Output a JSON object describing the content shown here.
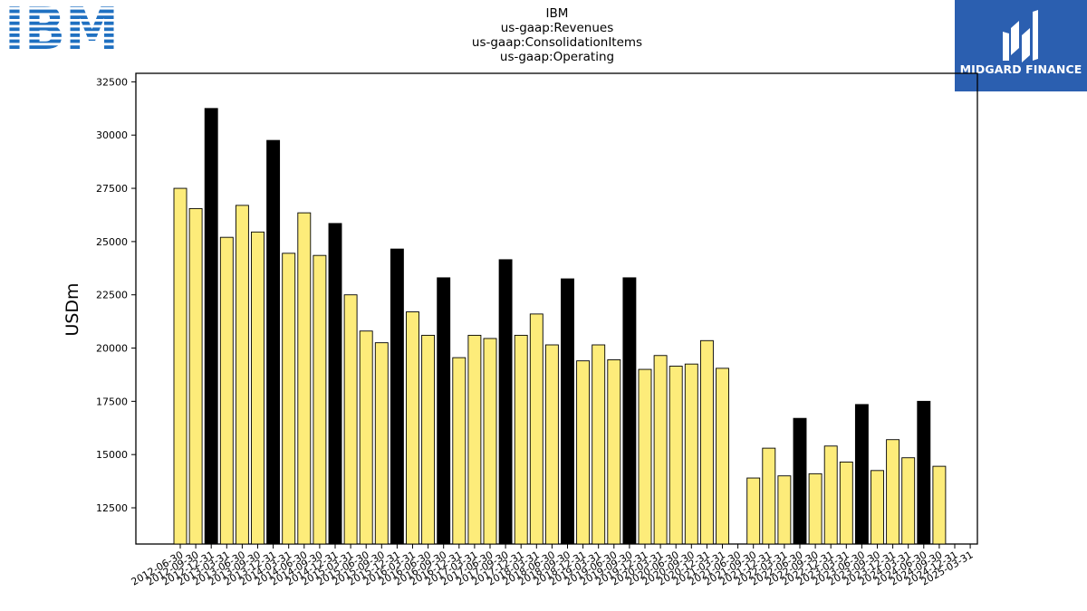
{
  "chart_data": {
    "type": "bar",
    "title_lines": [
      "IBM",
      "us-gaap:Revenues",
      "us-gaap:ConsolidationItems",
      "us-gaap:Operating"
    ],
    "xlabel": "",
    "ylabel": "USDm",
    "ylim": [
      10800,
      32900
    ],
    "yticks": [
      12500,
      15000,
      17500,
      20000,
      22500,
      25000,
      27500,
      30000,
      32500
    ],
    "grid": false,
    "legend": "none",
    "colors": {
      "quarter": "#fdec7a",
      "year_end": "#000000",
      "edge": "#000000"
    },
    "categories": [
      "2012-06-30",
      "2012-09-30",
      "2012-12-31",
      "2013-03-31",
      "2013-06-30",
      "2013-09-30",
      "2013-12-31",
      "2014-03-31",
      "2014-06-30",
      "2014-09-30",
      "2014-12-31",
      "2015-03-31",
      "2015-06-30",
      "2015-09-30",
      "2015-12-31",
      "2016-03-31",
      "2016-06-30",
      "2016-09-30",
      "2016-12-31",
      "2017-03-31",
      "2017-06-30",
      "2017-09-30",
      "2017-12-31",
      "2018-03-31",
      "2018-06-30",
      "2018-09-30",
      "2018-12-31",
      "2019-03-31",
      "2019-06-30",
      "2019-09-30",
      "2019-12-31",
      "2020-03-31",
      "2020-06-30",
      "2020-09-30",
      "2020-12-31",
      "2021-03-31",
      "2021-06-30",
      "2021-09-30",
      "2021-12-31",
      "2022-03-31",
      "2022-06-30",
      "2022-09-30",
      "2022-12-31",
      "2023-03-31",
      "2023-06-30",
      "2023-09-30",
      "2023-12-31",
      "2024-03-31",
      "2024-06-30",
      "2024-09-30",
      "2024-12-31",
      "2025-03-31"
    ],
    "values": [
      27500,
      26550,
      31250,
      25200,
      26700,
      25450,
      29750,
      24450,
      26350,
      24350,
      25850,
      22500,
      20800,
      20250,
      24650,
      21700,
      20600,
      23300,
      19550,
      20600,
      20450,
      24150,
      20600,
      21600,
      20150,
      23250,
      19400,
      20150,
      19450,
      23300,
      19000,
      19650,
      19150,
      19250,
      20350,
      19050,
      null,
      13900,
      15300,
      14000,
      16700,
      14100,
      15400,
      14650,
      17350,
      14250,
      15700,
      14850,
      17500,
      14450,
      null,
      null
    ],
    "bar_values_aligned_to_slots": [
      27500,
      26550,
      31250,
      25200,
      26700,
      25450,
      29750,
      24450,
      26350,
      24350,
      25850,
      22500,
      20800,
      20250,
      24650,
      21700,
      20600,
      23300,
      19550,
      20600,
      20450,
      24150,
      20600,
      21600,
      20150,
      23250,
      19400,
      20150,
      19450,
      23300,
      19000,
      19650,
      19150,
      19250,
      20350,
      19050,
      null,
      13900,
      15300,
      14000,
      16700,
      14100,
      15400,
      14650,
      17350,
      14250,
      15700,
      14850,
      17500,
      14450
    ],
    "year_end_flags": [
      false,
      false,
      true,
      false,
      false,
      false,
      true,
      false,
      false,
      false,
      true,
      false,
      false,
      false,
      true,
      false,
      false,
      true,
      false,
      false,
      false,
      true,
      false,
      false,
      false,
      true,
      false,
      false,
      false,
      true,
      false,
      false,
      false,
      false,
      false,
      false,
      false,
      false,
      false,
      false,
      true,
      false,
      false,
      false,
      true,
      false,
      false,
      false,
      true,
      false
    ]
  },
  "logos": {
    "company": "IBM",
    "brand": "MIDGARD FINANCE"
  }
}
